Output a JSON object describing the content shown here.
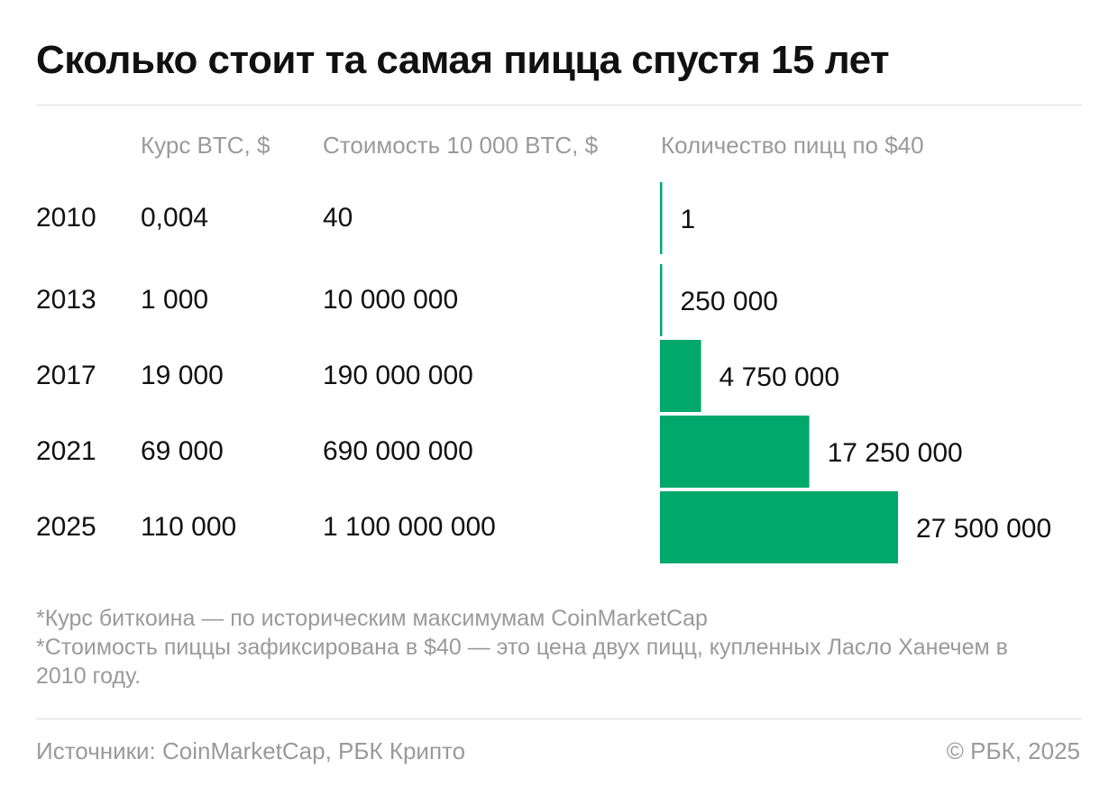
{
  "title": "Сколько стоит та самая пицца спустя 15 лет",
  "columns": {
    "rate": "Курс BTC, $",
    "cost": "Стоимость 10 000 BTC, $",
    "pizza": "Количество пицц по $40"
  },
  "chart_data": {
    "type": "bar",
    "orientation": "horizontal",
    "title": "Сколько стоит та самая пицца спустя 15 лет",
    "categories": [
      "2010",
      "2013",
      "2017",
      "2021",
      "2025"
    ],
    "btc_rate": [
      "0,004",
      "1 000",
      "19 000",
      "69 000",
      "110 000"
    ],
    "cost_10000_btc": [
      "40",
      "10 000 000",
      "190 000 000",
      "690 000 000",
      "1 100 000 000"
    ],
    "value_labels": [
      "1",
      "250 000",
      "4 750 000",
      "17 250 000",
      "27 500 000"
    ],
    "values": [
      1,
      250000,
      4750000,
      17250000,
      27500000
    ],
    "xlim": [
      0,
      27500000
    ],
    "bar_color": "#00a86b",
    "grid": false,
    "legend": "none"
  },
  "notes": [
    "*Курс биткоина — по историческим максимумам CoinMarketCap",
    "*Стоимость пиццы зафиксирована в $40 — это цена двух пицц, купленных Ласло Ханечем в 2010 году."
  ],
  "footer": {
    "sources": "Источники: CoinMarketCap, РБК Крипто",
    "copyright": "© РБК, 2025"
  }
}
